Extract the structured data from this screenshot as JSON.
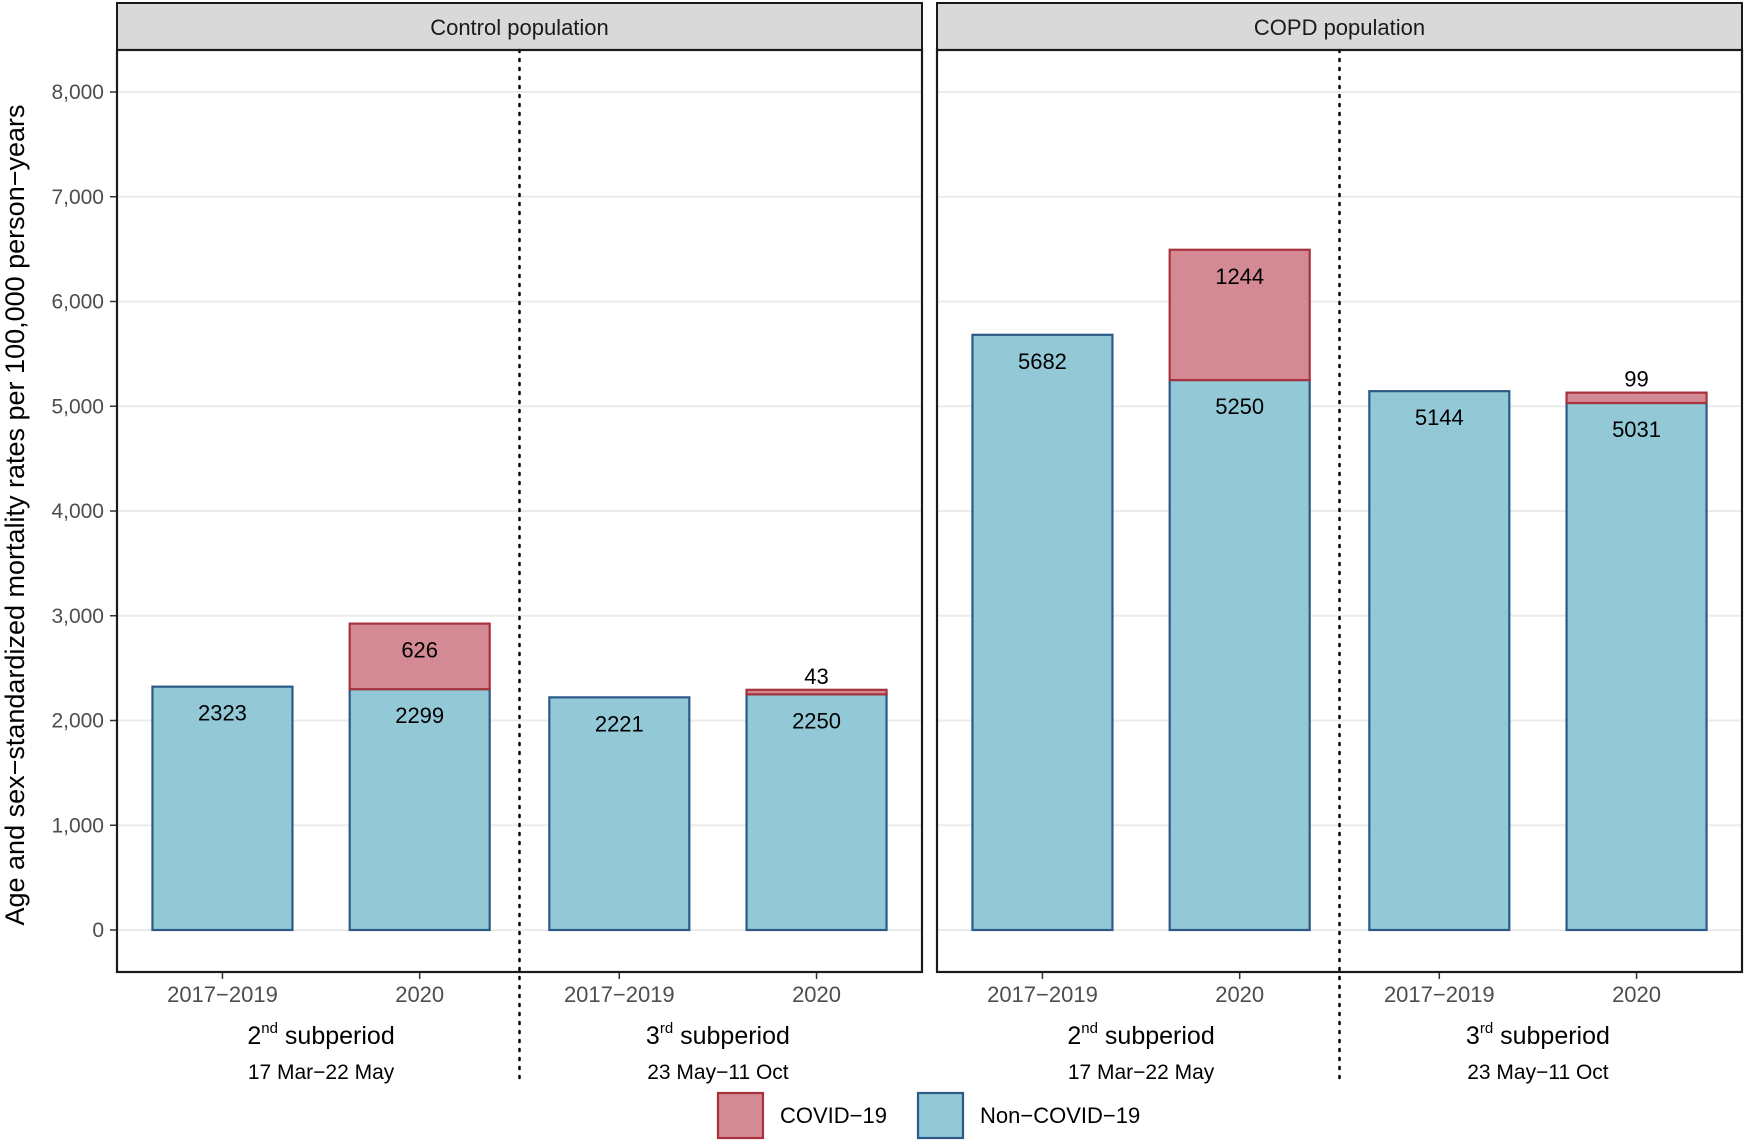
{
  "chart_data": {
    "type": "bar",
    "stacked": true,
    "ylabel": "Age and sex−standardized mortality rates per 100,000 person−years",
    "ylim": [
      0,
      8300
    ],
    "yticks": [
      0,
      1000,
      2000,
      3000,
      4000,
      5000,
      6000,
      7000,
      8000
    ],
    "ytick_labels": [
      "0",
      "1,000",
      "2,000",
      "3,000",
      "4,000",
      "5,000",
      "6,000",
      "7,000",
      "8,000"
    ],
    "categories": [
      "2017−2019",
      "2020",
      "2017−2019",
      "2020"
    ],
    "subperiods": [
      {
        "ordinal": "2",
        "suffix": "nd",
        "word": "subperiod",
        "dates": "17 Mar−22 May"
      },
      {
        "ordinal": "3",
        "suffix": "rd",
        "word": "subperiod",
        "dates": "23 May−11 Oct"
      }
    ],
    "panels": [
      {
        "title": "Control population",
        "series": [
          {
            "name": "Non−COVID−19",
            "values": [
              2323,
              2299,
              2221,
              2250
            ]
          },
          {
            "name": "COVID−19",
            "values": [
              0,
              626,
              0,
              43
            ]
          }
        ]
      },
      {
        "title": "COPD population",
        "series": [
          {
            "name": "Non−COVID−19",
            "values": [
              5682,
              5250,
              5144,
              5031
            ]
          },
          {
            "name": "COVID−19",
            "values": [
              0,
              1244,
              0,
              99
            ]
          }
        ]
      }
    ],
    "legend": {
      "position": "bottom",
      "entries": [
        {
          "label": "COVID−19",
          "fill": "#d48a94",
          "stroke": "#a8323c"
        },
        {
          "label": "Non−COVID−19",
          "fill": "#93c9d6",
          "stroke": "#2c5a87"
        }
      ]
    },
    "colors": {
      "covid_fill": "#d48a94",
      "covid_stroke": "#a8323c",
      "noncovid_fill": "#93c9d6",
      "noncovid_stroke": "#2c5a87",
      "strip_bg": "#d9d9d9",
      "grid": "#ebebeb"
    }
  }
}
